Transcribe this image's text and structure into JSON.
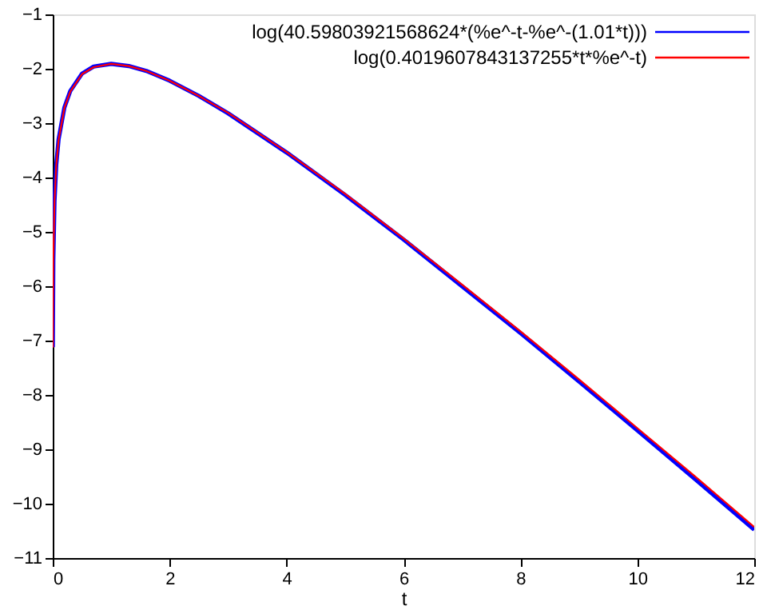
{
  "chart_data": {
    "type": "line",
    "xlabel": "t",
    "x": [
      0.002,
      0.01,
      0.03,
      0.06,
      0.1,
      0.2,
      0.3,
      0.5,
      0.7,
      1,
      1.3,
      1.6,
      2,
      2.5,
      3,
      4,
      5,
      6,
      7,
      8,
      9,
      10,
      11,
      12
    ],
    "series": [
      {
        "name": "log(40.59803921568624*(%e^-t-%e^-(1.01*t)))",
        "color": "#0000ff",
        "values": [
          -7.12,
          -5.52,
          -4.44,
          -3.77,
          -3.3,
          -2.71,
          -2.41,
          -2.09,
          -1.96,
          -1.91,
          -1.95,
          -2.04,
          -2.22,
          -2.5,
          -2.82,
          -3.54,
          -4.32,
          -5.14,
          -6.0,
          -6.86,
          -7.75,
          -8.65,
          -9.56,
          -10.48
        ]
      },
      {
        "name": "log(0.4019607843137255*t*%e^-t)",
        "color": "#ff0000",
        "values": [
          -7.13,
          -5.53,
          -4.45,
          -3.78,
          -3.31,
          -2.72,
          -2.42,
          -2.1,
          -1.97,
          -1.91,
          -1.95,
          -2.04,
          -2.22,
          -2.5,
          -2.81,
          -3.53,
          -4.3,
          -5.12,
          -5.97,
          -6.83,
          -7.71,
          -8.61,
          -9.51,
          -10.43
        ]
      }
    ],
    "xlim": [
      0,
      12
    ],
    "xticks": [
      0,
      2,
      4,
      6,
      8,
      10,
      12
    ],
    "ylim": [
      -11,
      -1
    ],
    "yticks": [
      -1,
      -2,
      -3,
      -4,
      -5,
      -6,
      -7,
      -8,
      -9,
      -10,
      -11
    ],
    "grid": false,
    "legend": "top right",
    "marker": "none",
    "line_style": "solid"
  }
}
